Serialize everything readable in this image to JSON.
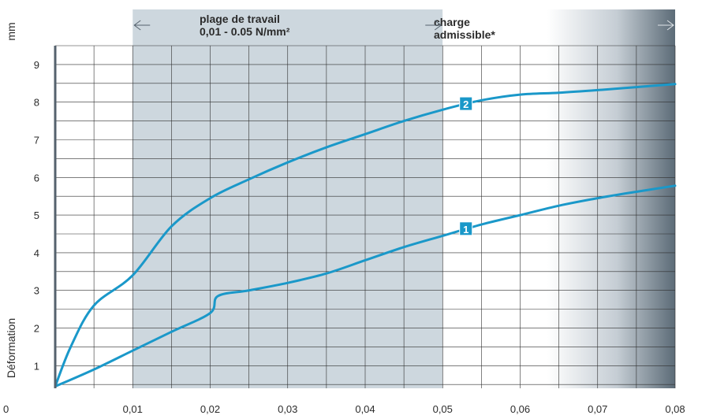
{
  "chart_data": {
    "type": "line",
    "xlabel": "",
    "ylabel": "Déformation",
    "yunit": "mm",
    "origin_label": "0",
    "x_ticks": [
      "0,01",
      "0,02",
      "0,03",
      "0,04",
      "0,05",
      "0,06",
      "0,07",
      "0,08"
    ],
    "y_ticks": [
      "1",
      "2",
      "3",
      "4",
      "5",
      "6",
      "7",
      "8",
      "9"
    ],
    "xlim": [
      0,
      0.08
    ],
    "ylim": [
      0.4,
      9.5
    ],
    "grid": true,
    "zones": [
      {
        "line1": "plage de travail",
        "line2": "0,01 - 0.05 N/mm²",
        "from": 0.01,
        "to": 0.05,
        "color": "#cdd7de"
      },
      {
        "line1": "charge",
        "line2": "admissible*",
        "from": 0.05,
        "to": 0.08,
        "color_start": "#ffffff",
        "color_end": "#5c6b77"
      }
    ],
    "series": [
      {
        "name": "1",
        "color": "#1a98c9",
        "x": [
          0,
          0.005,
          0.01,
          0.015,
          0.02,
          0.021,
          0.025,
          0.03,
          0.035,
          0.04,
          0.045,
          0.05,
          0.055,
          0.06,
          0.065,
          0.07,
          0.075,
          0.08
        ],
        "y": [
          0.45,
          0.9,
          1.4,
          1.9,
          2.4,
          2.85,
          3.0,
          3.2,
          3.45,
          3.8,
          4.15,
          4.45,
          4.75,
          5.0,
          5.25,
          5.45,
          5.62,
          5.78
        ]
      },
      {
        "name": "2",
        "color": "#1a98c9",
        "x": [
          0,
          0.002,
          0.005,
          0.01,
          0.015,
          0.02,
          0.025,
          0.03,
          0.035,
          0.04,
          0.045,
          0.05,
          0.055,
          0.06,
          0.065,
          0.07,
          0.075,
          0.08
        ],
        "y": [
          0.45,
          1.5,
          2.6,
          3.4,
          4.7,
          5.45,
          5.95,
          6.4,
          6.8,
          7.15,
          7.5,
          7.8,
          8.05,
          8.2,
          8.25,
          8.32,
          8.4,
          8.48
        ]
      }
    ],
    "labels": [
      {
        "text": "2",
        "series": 1,
        "x": 0.053
      },
      {
        "text": "1",
        "series": 0,
        "x": 0.053
      }
    ]
  }
}
